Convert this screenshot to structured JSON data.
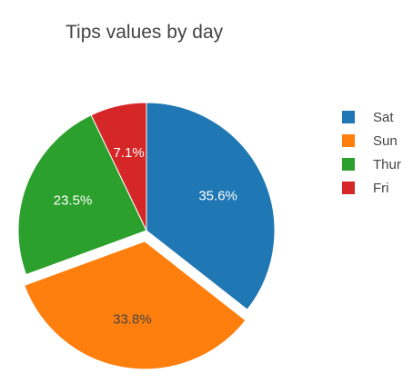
{
  "chart_data": {
    "type": "pie",
    "title": "Tips values by day",
    "categories": [
      "Sat",
      "Sun",
      "Thur",
      "Fri"
    ],
    "values": [
      35.6,
      33.8,
      23.5,
      7.1
    ],
    "labels": [
      "35.6%",
      "33.8%",
      "23.5%",
      "7.1%"
    ],
    "pulled": [
      "Sun"
    ],
    "direction": "clockwise",
    "start_angle_deg": 90,
    "colors": [
      "#1f77b4",
      "#ff7f0e",
      "#2ca02c",
      "#d62728"
    ],
    "label_colors": [
      "#ffffff",
      "#444444",
      "#ffffff",
      "#ffffff"
    ],
    "legend_position": "right"
  }
}
